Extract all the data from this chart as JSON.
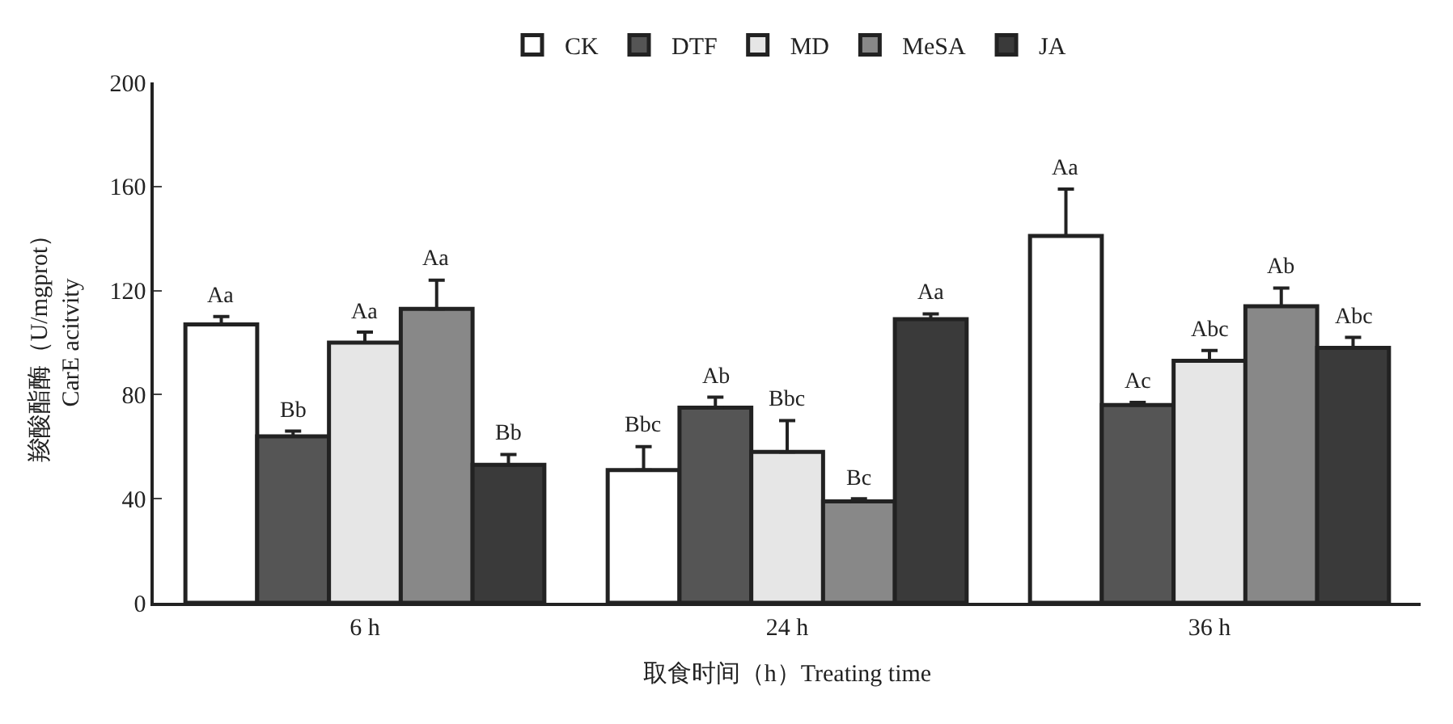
{
  "chart_data": {
    "type": "bar",
    "xlabel": "取食时间（h）Treating time",
    "ylabel": "羧酸酯酶（U/mgprot）\nCarE acitvity",
    "categories": [
      "6 h",
      "24 h",
      "36 h"
    ],
    "series": [
      {
        "name": "CK",
        "color": "#ffffff",
        "values": [
          107,
          51,
          141
        ],
        "errors": [
          [
            107,
            110
          ],
          [
            51,
            60
          ],
          [
            141,
            159
          ]
        ],
        "value_labels": [
          "Aa",
          "Bbc",
          "Aa"
        ]
      },
      {
        "name": "DTF",
        "color": "#555555",
        "values": [
          64,
          75,
          76
        ],
        "errors": [
          [
            64,
            66
          ],
          [
            75,
            79
          ],
          [
            76,
            77
          ]
        ],
        "value_labels": [
          "Bb",
          "Ab",
          "Ac"
        ]
      },
      {
        "name": "MD",
        "color": "#e6e6e6",
        "values": [
          100,
          58,
          93
        ],
        "errors": [
          [
            100,
            104
          ],
          [
            58,
            70
          ],
          [
            93,
            97
          ]
        ],
        "value_labels": [
          "Aa",
          "Bbc",
          "Abc"
        ]
      },
      {
        "name": "MeSA",
        "color": "#888888",
        "values": [
          113,
          39,
          114
        ],
        "errors": [
          [
            113,
            124
          ],
          [
            39,
            40
          ],
          [
            114,
            121
          ]
        ],
        "value_labels": [
          "Aa",
          "Bc",
          "Ab"
        ]
      },
      {
        "name": "JA",
        "color": "#3a3a3a",
        "values": [
          53,
          109,
          98
        ],
        "errors": [
          [
            53,
            57
          ],
          [
            109,
            111
          ],
          [
            98,
            102
          ]
        ],
        "value_labels": [
          "Bb",
          "Aa",
          "Abc"
        ]
      }
    ],
    "ylim": [
      0,
      200
    ],
    "yticks": [
      0,
      40,
      80,
      120,
      160,
      200
    ],
    "grid": false,
    "legend": "top"
  }
}
